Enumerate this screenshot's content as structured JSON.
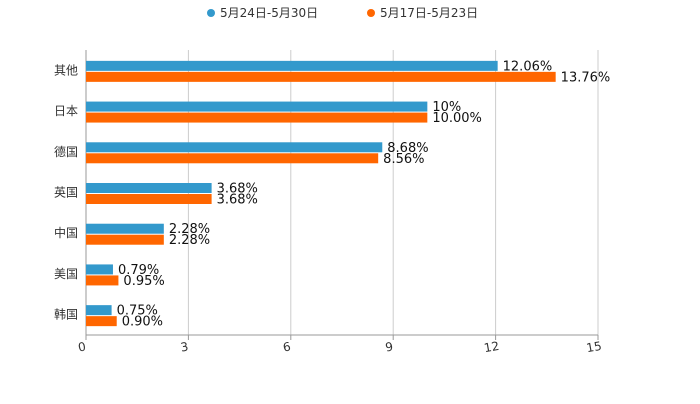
{
  "chart_data": {
    "type": "bar",
    "orientation": "horizontal",
    "title": "",
    "xlabel": "",
    "ylabel": "",
    "xlim": [
      0,
      15
    ],
    "xticks": [
      0,
      3,
      6,
      9,
      12,
      15
    ],
    "grid": true,
    "legend_position": "top-center",
    "categories": [
      "其他",
      "日本",
      "德国",
      "英国",
      "中国",
      "美国",
      "韩国"
    ],
    "series": [
      {
        "name": "5月24日-5月30日",
        "color": "#3399cc",
        "values": [
          12.06,
          10,
          8.68,
          3.68,
          2.28,
          0.79,
          0.75
        ],
        "labels": [
          "12.06%",
          "10%",
          "8.68%",
          "3.68%",
          "2.28%",
          "0.79%",
          "0.75%"
        ]
      },
      {
        "name": "5月17日-5月23日",
        "color": "#ff6600",
        "values": [
          13.76,
          10.0,
          8.56,
          3.68,
          2.28,
          0.95,
          0.9
        ],
        "labels": [
          "13.76%",
          "10.00%",
          "8.56%",
          "3.68%",
          "2.28%",
          "0.95%",
          "0.90%"
        ]
      }
    ]
  }
}
